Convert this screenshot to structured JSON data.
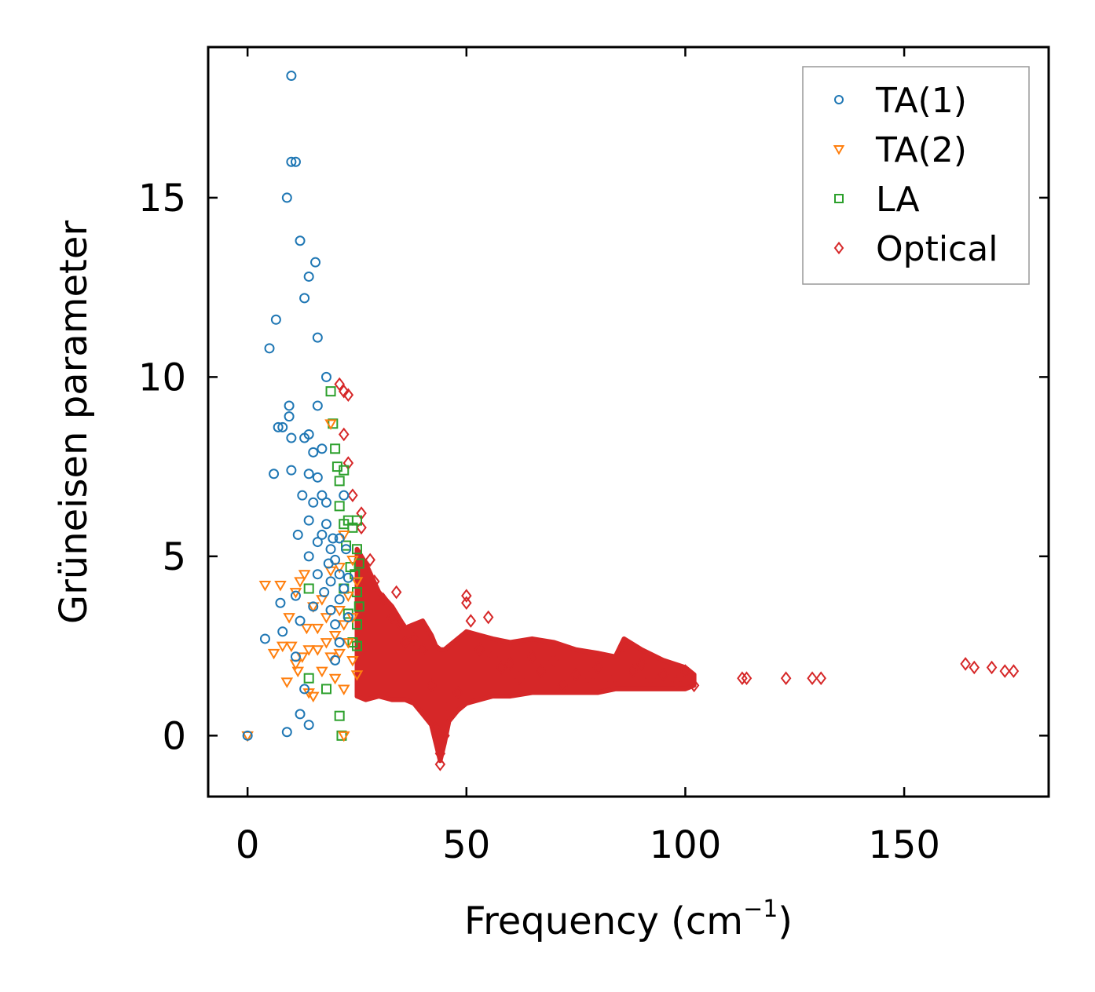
{
  "chart_data": {
    "type": "scatter",
    "xlabel": "Frequency (cm",
    "xlabel_sup": "−1",
    "xlabel_end": ")",
    "ylabel": "Grüneisen parameter",
    "xlim": [
      -9,
      183
    ],
    "ylim": [
      -1.7,
      19.2
    ],
    "xticks": [
      0,
      50,
      100,
      150
    ],
    "yticks": [
      0,
      5,
      10,
      15
    ],
    "legend_position": "top-right",
    "series": [
      {
        "name": "TA(1)",
        "marker": "circle",
        "color": "#1f77b4",
        "points": [
          [
            0,
            0
          ],
          [
            4,
            2.7
          ],
          [
            5,
            10.8
          ],
          [
            6,
            7.3
          ],
          [
            6.5,
            11.6
          ],
          [
            7,
            8.6
          ],
          [
            7.5,
            3.7
          ],
          [
            8,
            2.9
          ],
          [
            8,
            8.6
          ],
          [
            9,
            15
          ],
          [
            9,
            0.1
          ],
          [
            9.5,
            9.2
          ],
          [
            9.5,
            8.9
          ],
          [
            10,
            16
          ],
          [
            10,
            18.4
          ],
          [
            10,
            8.3
          ],
          [
            10,
            7.4
          ],
          [
            11,
            16
          ],
          [
            11,
            3.9
          ],
          [
            11,
            2.2
          ],
          [
            11.5,
            5.6
          ],
          [
            12,
            13.8
          ],
          [
            12,
            3.2
          ],
          [
            12,
            0.6
          ],
          [
            12.5,
            6.7
          ],
          [
            13,
            12.2
          ],
          [
            13,
            8.3
          ],
          [
            13,
            1.3
          ],
          [
            14,
            12.8
          ],
          [
            14,
            8.4
          ],
          [
            14,
            7.3
          ],
          [
            14,
            6
          ],
          [
            14,
            5
          ],
          [
            14,
            0.3
          ],
          [
            15,
            7.9
          ],
          [
            15,
            6.5
          ],
          [
            15,
            3.6
          ],
          [
            15.5,
            13.2
          ],
          [
            16,
            11.1
          ],
          [
            16,
            9.2
          ],
          [
            16,
            7.2
          ],
          [
            16,
            5.4
          ],
          [
            16,
            4.5
          ],
          [
            17,
            8
          ],
          [
            17,
            6.7
          ],
          [
            17,
            5.6
          ],
          [
            17.5,
            4
          ],
          [
            18,
            10
          ],
          [
            18,
            6.5
          ],
          [
            18,
            5.9
          ],
          [
            18.5,
            4.8
          ],
          [
            19,
            5.2
          ],
          [
            19,
            4.3
          ],
          [
            19,
            3.5
          ],
          [
            19.5,
            5.5
          ],
          [
            20,
            4.9
          ],
          [
            20,
            3.1
          ],
          [
            20,
            2.1
          ],
          [
            21,
            5.5
          ],
          [
            21,
            4.5
          ],
          [
            21,
            3.8
          ],
          [
            21,
            2.6
          ],
          [
            22,
            6.7
          ],
          [
            22,
            4.1
          ],
          [
            22.5,
            5.2
          ],
          [
            23,
            4.4
          ],
          [
            23,
            3.3
          ]
        ]
      },
      {
        "name": "TA(2)",
        "marker": "triangle",
        "color": "#ff7f0e",
        "points": [
          [
            0,
            0
          ],
          [
            4,
            4.2
          ],
          [
            6,
            2.3
          ],
          [
            7.5,
            4.2
          ],
          [
            8,
            2.5
          ],
          [
            9,
            1.5
          ],
          [
            9.5,
            3.3
          ],
          [
            10,
            2.5
          ],
          [
            11,
            4
          ],
          [
            11,
            2
          ],
          [
            11.5,
            1.8
          ],
          [
            12,
            4.3
          ],
          [
            12.5,
            2.2
          ],
          [
            13,
            4.5
          ],
          [
            13.5,
            3
          ],
          [
            14,
            2.4
          ],
          [
            14,
            1.2
          ],
          [
            15,
            3.6
          ],
          [
            15,
            1.1
          ],
          [
            16,
            3
          ],
          [
            16,
            2.4
          ],
          [
            17,
            3.8
          ],
          [
            17,
            1.8
          ],
          [
            18,
            3.3
          ],
          [
            18,
            2.6
          ],
          [
            19,
            2.2
          ],
          [
            19,
            8.7
          ],
          [
            19,
            4.6
          ],
          [
            20,
            2.8
          ],
          [
            20,
            1.6
          ],
          [
            21,
            3.5
          ],
          [
            21,
            2.3
          ],
          [
            21,
            4.7
          ],
          [
            22,
            5.6
          ],
          [
            22,
            3.1
          ],
          [
            22,
            1.3
          ],
          [
            22,
            0
          ],
          [
            23,
            3.9
          ],
          [
            23,
            2.6
          ],
          [
            24,
            4.9
          ],
          [
            24,
            3.3
          ],
          [
            24,
            2.1
          ],
          [
            25,
            4.3
          ],
          [
            25,
            1.7
          ]
        ]
      },
      {
        "name": "LA",
        "marker": "square",
        "color": "#2ca02c",
        "points": [
          [
            14,
            4.1
          ],
          [
            14,
            1.6
          ],
          [
            18,
            1.3
          ],
          [
            19,
            9.6
          ],
          [
            19.5,
            8.7
          ],
          [
            20,
            8
          ],
          [
            20.5,
            7.5
          ],
          [
            21,
            7.1
          ],
          [
            21,
            6.4
          ],
          [
            21,
            0.55
          ],
          [
            21.5,
            0
          ],
          [
            22,
            7.4
          ],
          [
            22,
            5.9
          ],
          [
            22,
            4.1
          ],
          [
            22.5,
            5.3
          ],
          [
            23,
            6
          ],
          [
            23,
            3.4
          ],
          [
            23.5,
            4.7
          ],
          [
            24,
            5.8
          ],
          [
            24,
            2.6
          ],
          [
            24.5,
            4.5
          ],
          [
            25,
            6
          ],
          [
            25,
            5.2
          ],
          [
            25,
            4
          ],
          [
            25,
            3.1
          ],
          [
            25,
            2.5
          ],
          [
            25.5,
            4.8
          ],
          [
            25.5,
            3.6
          ]
        ]
      },
      {
        "name": "Optical",
        "marker": "diamond",
        "color": "#d62728",
        "points": [
          [
            21,
            9.8
          ],
          [
            22,
            9.6
          ],
          [
            22,
            8.4
          ],
          [
            23,
            9.5
          ],
          [
            23,
            7.6
          ],
          [
            24,
            6.7
          ],
          [
            26,
            6.2
          ],
          [
            26,
            5.8
          ],
          [
            28,
            4.9
          ],
          [
            29,
            4.3
          ],
          [
            31,
            3.8
          ],
          [
            33,
            3.3
          ],
          [
            34,
            4
          ],
          [
            35,
            3.1
          ],
          [
            36,
            2.6
          ],
          [
            38,
            2.7
          ],
          [
            40,
            2.4
          ],
          [
            42,
            1.4
          ],
          [
            43,
            0.2
          ],
          [
            44,
            -0.5
          ],
          [
            44,
            -0.8
          ],
          [
            45,
            0
          ],
          [
            46,
            0.8
          ],
          [
            48,
            1.2
          ],
          [
            50,
            3.9
          ],
          [
            50,
            3.7
          ],
          [
            51,
            3.2
          ],
          [
            53,
            2.4
          ],
          [
            55,
            3.3
          ],
          [
            56,
            2.2
          ],
          [
            58,
            1.9
          ],
          [
            60,
            2.0
          ],
          [
            62,
            1.6
          ],
          [
            65,
            2.2
          ],
          [
            67,
            1.8
          ],
          [
            70,
            2.1
          ],
          [
            72,
            1.4
          ],
          [
            75,
            1.7
          ],
          [
            78,
            1.6
          ],
          [
            80,
            1.9
          ],
          [
            83,
            1.5
          ],
          [
            86,
            2.5
          ],
          [
            88,
            1.8
          ],
          [
            90,
            2.0
          ],
          [
            92,
            1.6
          ],
          [
            95,
            1.7
          ],
          [
            98,
            1.5
          ],
          [
            100,
            1.8
          ],
          [
            102,
            1.4
          ],
          [
            113,
            1.6
          ],
          [
            114,
            1.6
          ],
          [
            123,
            1.6
          ],
          [
            129,
            1.6
          ],
          [
            131,
            1.6
          ],
          [
            164,
            2.0
          ],
          [
            166,
            1.9
          ],
          [
            170,
            1.9
          ],
          [
            173,
            1.8
          ],
          [
            175,
            1.8
          ]
        ]
      }
    ]
  }
}
